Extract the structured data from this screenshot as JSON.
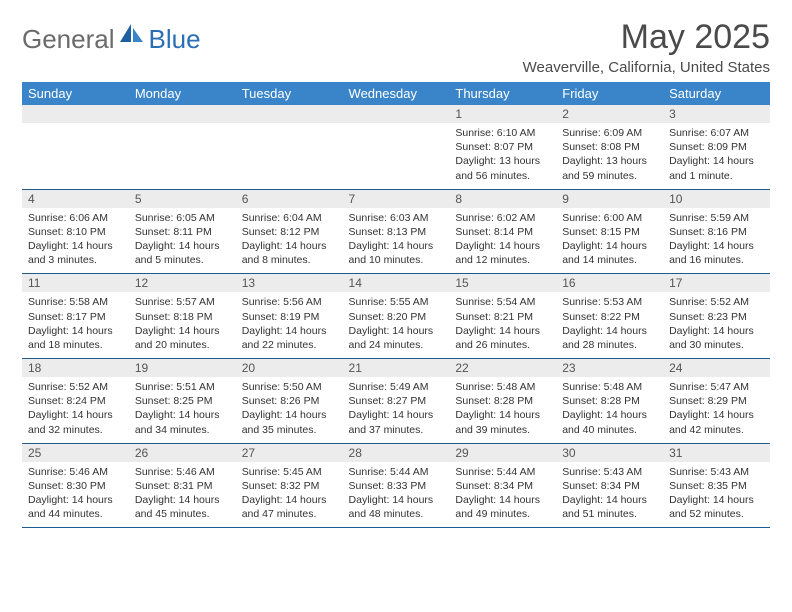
{
  "brand": {
    "general": "General",
    "blue": "Blue"
  },
  "header": {
    "title": "May 2025",
    "location": "Weaverville, California, United States"
  },
  "colors": {
    "header_row_bg": "#3a85c9",
    "header_row_text": "#ffffff",
    "daynum_bg": "#ececec",
    "cell_border": "#1f5a8f",
    "logo_blue": "#2a6fb5",
    "logo_gray": "#6b6b6b"
  },
  "weekdays": [
    "Sunday",
    "Monday",
    "Tuesday",
    "Wednesday",
    "Thursday",
    "Friday",
    "Saturday"
  ],
  "weeks": [
    [
      {
        "n": "",
        "sunrise": "",
        "sunset": "",
        "daylight": ""
      },
      {
        "n": "",
        "sunrise": "",
        "sunset": "",
        "daylight": ""
      },
      {
        "n": "",
        "sunrise": "",
        "sunset": "",
        "daylight": ""
      },
      {
        "n": "",
        "sunrise": "",
        "sunset": "",
        "daylight": ""
      },
      {
        "n": "1",
        "sunrise": "Sunrise: 6:10 AM",
        "sunset": "Sunset: 8:07 PM",
        "daylight": "Daylight: 13 hours and 56 minutes."
      },
      {
        "n": "2",
        "sunrise": "Sunrise: 6:09 AM",
        "sunset": "Sunset: 8:08 PM",
        "daylight": "Daylight: 13 hours and 59 minutes."
      },
      {
        "n": "3",
        "sunrise": "Sunrise: 6:07 AM",
        "sunset": "Sunset: 8:09 PM",
        "daylight": "Daylight: 14 hours and 1 minute."
      }
    ],
    [
      {
        "n": "4",
        "sunrise": "Sunrise: 6:06 AM",
        "sunset": "Sunset: 8:10 PM",
        "daylight": "Daylight: 14 hours and 3 minutes."
      },
      {
        "n": "5",
        "sunrise": "Sunrise: 6:05 AM",
        "sunset": "Sunset: 8:11 PM",
        "daylight": "Daylight: 14 hours and 5 minutes."
      },
      {
        "n": "6",
        "sunrise": "Sunrise: 6:04 AM",
        "sunset": "Sunset: 8:12 PM",
        "daylight": "Daylight: 14 hours and 8 minutes."
      },
      {
        "n": "7",
        "sunrise": "Sunrise: 6:03 AM",
        "sunset": "Sunset: 8:13 PM",
        "daylight": "Daylight: 14 hours and 10 minutes."
      },
      {
        "n": "8",
        "sunrise": "Sunrise: 6:02 AM",
        "sunset": "Sunset: 8:14 PM",
        "daylight": "Daylight: 14 hours and 12 minutes."
      },
      {
        "n": "9",
        "sunrise": "Sunrise: 6:00 AM",
        "sunset": "Sunset: 8:15 PM",
        "daylight": "Daylight: 14 hours and 14 minutes."
      },
      {
        "n": "10",
        "sunrise": "Sunrise: 5:59 AM",
        "sunset": "Sunset: 8:16 PM",
        "daylight": "Daylight: 14 hours and 16 minutes."
      }
    ],
    [
      {
        "n": "11",
        "sunrise": "Sunrise: 5:58 AM",
        "sunset": "Sunset: 8:17 PM",
        "daylight": "Daylight: 14 hours and 18 minutes."
      },
      {
        "n": "12",
        "sunrise": "Sunrise: 5:57 AM",
        "sunset": "Sunset: 8:18 PM",
        "daylight": "Daylight: 14 hours and 20 minutes."
      },
      {
        "n": "13",
        "sunrise": "Sunrise: 5:56 AM",
        "sunset": "Sunset: 8:19 PM",
        "daylight": "Daylight: 14 hours and 22 minutes."
      },
      {
        "n": "14",
        "sunrise": "Sunrise: 5:55 AM",
        "sunset": "Sunset: 8:20 PM",
        "daylight": "Daylight: 14 hours and 24 minutes."
      },
      {
        "n": "15",
        "sunrise": "Sunrise: 5:54 AM",
        "sunset": "Sunset: 8:21 PM",
        "daylight": "Daylight: 14 hours and 26 minutes."
      },
      {
        "n": "16",
        "sunrise": "Sunrise: 5:53 AM",
        "sunset": "Sunset: 8:22 PM",
        "daylight": "Daylight: 14 hours and 28 minutes."
      },
      {
        "n": "17",
        "sunrise": "Sunrise: 5:52 AM",
        "sunset": "Sunset: 8:23 PM",
        "daylight": "Daylight: 14 hours and 30 minutes."
      }
    ],
    [
      {
        "n": "18",
        "sunrise": "Sunrise: 5:52 AM",
        "sunset": "Sunset: 8:24 PM",
        "daylight": "Daylight: 14 hours and 32 minutes."
      },
      {
        "n": "19",
        "sunrise": "Sunrise: 5:51 AM",
        "sunset": "Sunset: 8:25 PM",
        "daylight": "Daylight: 14 hours and 34 minutes."
      },
      {
        "n": "20",
        "sunrise": "Sunrise: 5:50 AM",
        "sunset": "Sunset: 8:26 PM",
        "daylight": "Daylight: 14 hours and 35 minutes."
      },
      {
        "n": "21",
        "sunrise": "Sunrise: 5:49 AM",
        "sunset": "Sunset: 8:27 PM",
        "daylight": "Daylight: 14 hours and 37 minutes."
      },
      {
        "n": "22",
        "sunrise": "Sunrise: 5:48 AM",
        "sunset": "Sunset: 8:28 PM",
        "daylight": "Daylight: 14 hours and 39 minutes."
      },
      {
        "n": "23",
        "sunrise": "Sunrise: 5:48 AM",
        "sunset": "Sunset: 8:28 PM",
        "daylight": "Daylight: 14 hours and 40 minutes."
      },
      {
        "n": "24",
        "sunrise": "Sunrise: 5:47 AM",
        "sunset": "Sunset: 8:29 PM",
        "daylight": "Daylight: 14 hours and 42 minutes."
      }
    ],
    [
      {
        "n": "25",
        "sunrise": "Sunrise: 5:46 AM",
        "sunset": "Sunset: 8:30 PM",
        "daylight": "Daylight: 14 hours and 44 minutes."
      },
      {
        "n": "26",
        "sunrise": "Sunrise: 5:46 AM",
        "sunset": "Sunset: 8:31 PM",
        "daylight": "Daylight: 14 hours and 45 minutes."
      },
      {
        "n": "27",
        "sunrise": "Sunrise: 5:45 AM",
        "sunset": "Sunset: 8:32 PM",
        "daylight": "Daylight: 14 hours and 47 minutes."
      },
      {
        "n": "28",
        "sunrise": "Sunrise: 5:44 AM",
        "sunset": "Sunset: 8:33 PM",
        "daylight": "Daylight: 14 hours and 48 minutes."
      },
      {
        "n": "29",
        "sunrise": "Sunrise: 5:44 AM",
        "sunset": "Sunset: 8:34 PM",
        "daylight": "Daylight: 14 hours and 49 minutes."
      },
      {
        "n": "30",
        "sunrise": "Sunrise: 5:43 AM",
        "sunset": "Sunset: 8:34 PM",
        "daylight": "Daylight: 14 hours and 51 minutes."
      },
      {
        "n": "31",
        "sunrise": "Sunrise: 5:43 AM",
        "sunset": "Sunset: 8:35 PM",
        "daylight": "Daylight: 14 hours and 52 minutes."
      }
    ]
  ]
}
